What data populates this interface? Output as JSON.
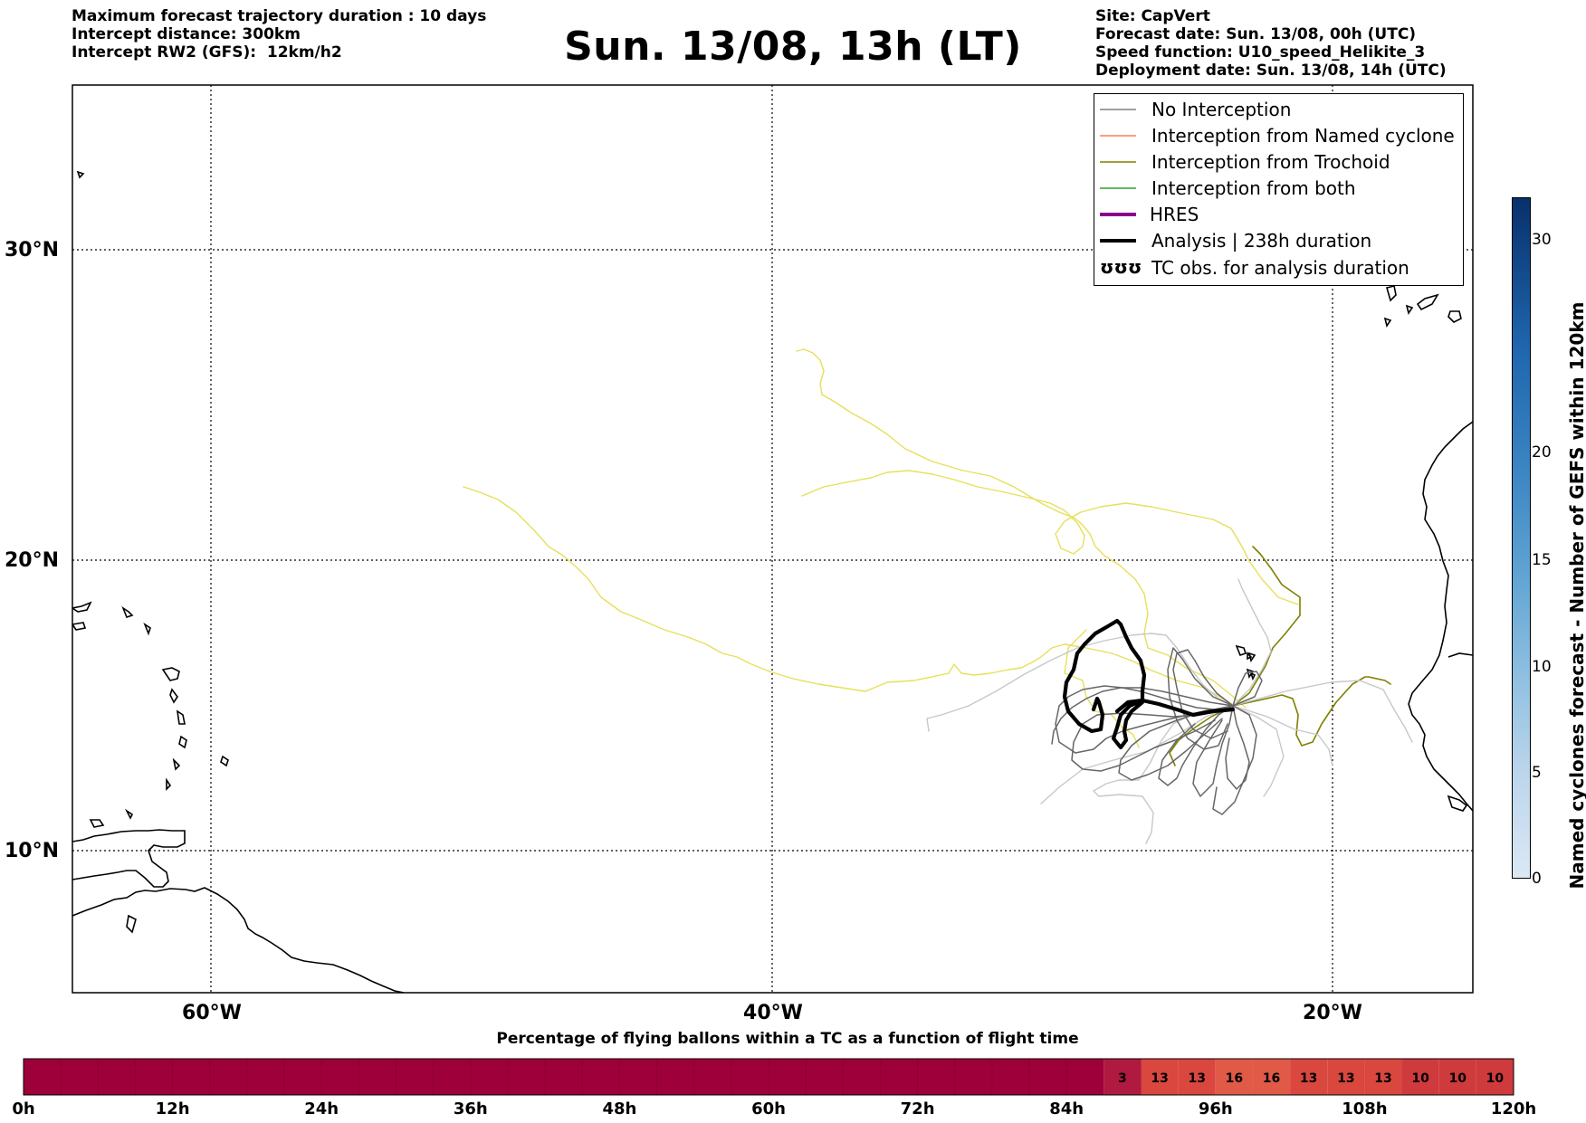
{
  "header_left": [
    "Maximum forecast trajectory duration : 10 days",
    "Intercept distance: 300km",
    "Intercept RW2 (GFS):  12km/h2"
  ],
  "title": "Sun. 13/08, 13h (LT)",
  "header_right": [
    "Site: CapVert",
    "Forecast date: Sun. 13/08, 00h (UTC)",
    "Speed function: U10_speed_Helikite_3",
    "Deployment date: Sun. 13/08, 14h (UTC)"
  ],
  "map": {
    "lat_labels": [
      "30°N",
      "20°N",
      "10°N"
    ],
    "lon_labels": [
      "60°W",
      "40°W",
      "20°W"
    ]
  },
  "legend": [
    {
      "label": "No Interception",
      "color": "#808080"
    },
    {
      "label": "Interception from Named cyclone",
      "color": "#ff7f50"
    },
    {
      "label": "Interception from Trochoid",
      "color": "#808000"
    },
    {
      "label": "Interception from both",
      "color": "#2ca02c"
    },
    {
      "label": "HRES",
      "color": "#8b008b"
    },
    {
      "label": "Analysis | 238h duration",
      "color": "#000000"
    },
    {
      "label": "TC obs. for analysis duration",
      "color": "#000000"
    }
  ],
  "legend_symbol": "ʊʊʊ",
  "colorbar": {
    "title": "Named cyclones forecast - Number of GEFS within 120km",
    "ticks": [
      "30",
      "20",
      "15",
      "10",
      "5",
      "0"
    ]
  },
  "bottom_bar": {
    "title": "Percentage of flying ballons within a TC as a function of flight time",
    "ticks": [
      "0h",
      "12h",
      "24h",
      "36h",
      "48h",
      "60h",
      "72h",
      "84h",
      "96h",
      "108h",
      "120h"
    ],
    "cells": [
      "3",
      "13",
      "13",
      "16",
      "16",
      "13",
      "13",
      "13",
      "10",
      "10",
      "10"
    ],
    "first_labeled_hour": 87,
    "cell_hours": 3
  }
}
